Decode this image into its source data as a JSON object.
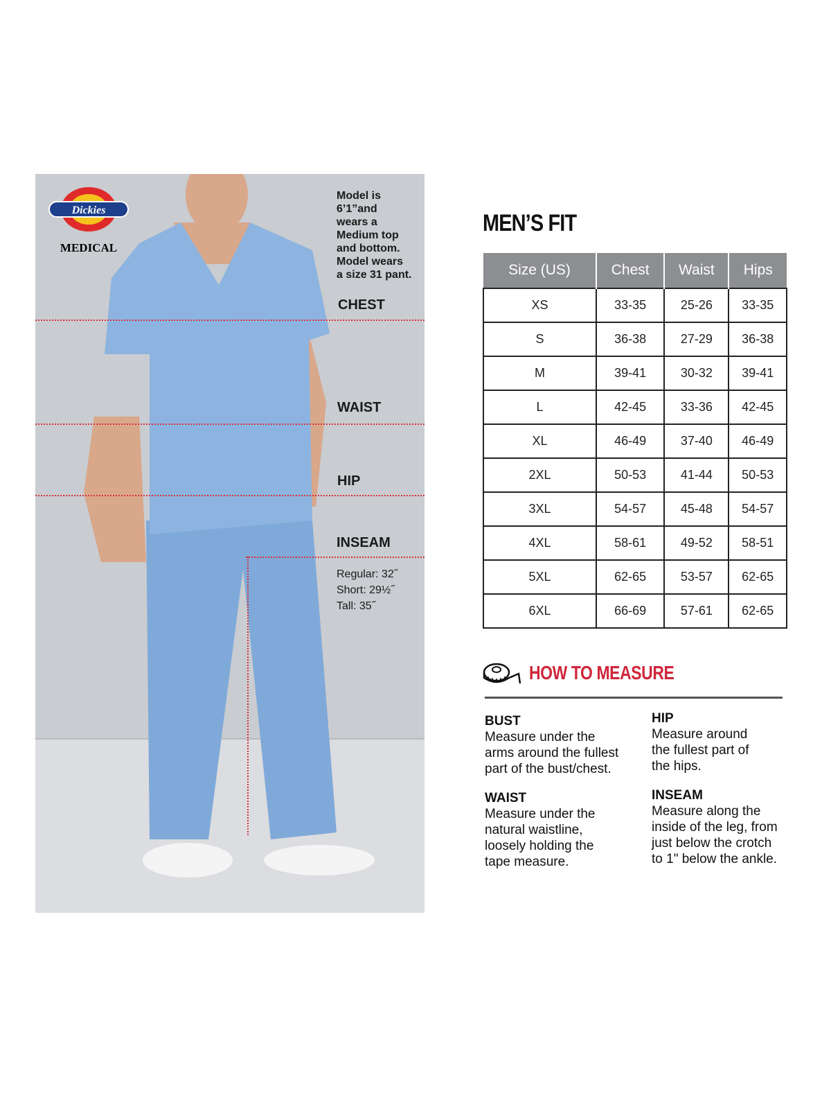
{
  "brand": {
    "name": "Dickies",
    "sub": "MEDICAL"
  },
  "model_note": "Model is\n6’1”and\nwears a\nMedium top\nand bottom.\nModel wears\na size 31 pant.",
  "markers": {
    "chest": "CHEST",
    "waist": "WAIST",
    "hip": "HIP",
    "inseam": "INSEAM"
  },
  "inseam_note": "Regular: 32˝\nShort: 29½˝\nTall: 35˝",
  "colors": {
    "marker_line": "#d9303a",
    "header_bg": "#8c8e91",
    "accent": "#d0253a",
    "scrubs": "#7fa9d8"
  },
  "size_chart": {
    "title": "MEN’S FIT",
    "headers": [
      "Size (US)",
      "Chest",
      "Waist",
      "Hips"
    ],
    "rows": [
      [
        "XS",
        "33-35",
        "25-26",
        "33-35"
      ],
      [
        "S",
        "36-38",
        "27-29",
        "36-38"
      ],
      [
        "M",
        "39-41",
        "30-32",
        "39-41"
      ],
      [
        "L",
        "42-45",
        "33-36",
        "42-45"
      ],
      [
        "XL",
        "46-49",
        "37-40",
        "46-49"
      ],
      [
        "2XL",
        "50-53",
        "41-44",
        "50-53"
      ],
      [
        "3XL",
        "54-57",
        "45-48",
        "54-57"
      ],
      [
        "4XL",
        "58-61",
        "49-52",
        "58-51"
      ],
      [
        "5XL",
        "62-65",
        "53-57",
        "62-65"
      ],
      [
        "6XL",
        "66-69",
        "57-61",
        "62-65"
      ]
    ]
  },
  "how_to_measure": {
    "title": "HOW TO MEASURE",
    "icon": "tape-measure-icon",
    "items": [
      {
        "heading": "BUST",
        "text": "Measure under the\narms around the fullest\npart of the bust/chest."
      },
      {
        "heading": "HIP",
        "text": "Measure around\nthe fullest part of\nthe hips."
      },
      {
        "heading": "WAIST",
        "text": "Measure under the\nnatural waistline,\nloosely holding the\ntape measure."
      },
      {
        "heading": "INSEAM",
        "text": "Measure along the\ninside of the leg, from\njust below the crotch\nto 1\" below the ankle."
      }
    ]
  }
}
